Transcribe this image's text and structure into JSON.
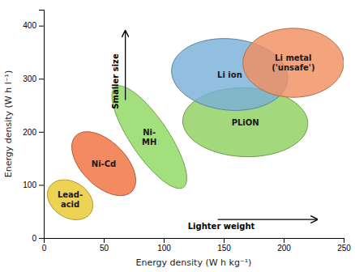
{
  "chart_data": {
    "type": "ellipse",
    "xlabel": "Energy density (W h kg⁻¹)",
    "ylabel": "Energy density (W h l⁻¹)",
    "xlim": [
      0,
      250
    ],
    "ylim": [
      0,
      430
    ],
    "xticks": [
      0,
      50,
      100,
      150,
      200,
      250
    ],
    "yticks": [
      0,
      100,
      200,
      300,
      400
    ],
    "grid": false,
    "series": [
      {
        "name": "Lead-\nacid",
        "color": "#e8c830",
        "cx": 22,
        "cy": 72,
        "rx": 18,
        "ry": 38,
        "angle": 10
      },
      {
        "name": "Ni-Cd",
        "color": "#f07040",
        "cx": 50,
        "cy": 140,
        "rx": 22,
        "ry": 62,
        "angle": 15
      },
      {
        "name": "Ni-\nMH",
        "color": "#90d860",
        "cx": 88,
        "cy": 190,
        "rx": 18,
        "ry": 100,
        "angle": 15
      },
      {
        "name": "PLiON",
        "color": "#90d060",
        "cx": 168,
        "cy": 218,
        "rx": 52,
        "ry": 65,
        "angle": 5
      },
      {
        "name": "Li ion",
        "color": "#7ab0d8",
        "cx": 155,
        "cy": 308,
        "rx": 48,
        "ry": 68,
        "angle": 8
      },
      {
        "name": "Li metal\n('unsafe')",
        "color": "#f09060",
        "cx": 208,
        "cy": 330,
        "rx": 42,
        "ry": 65,
        "angle": 0
      }
    ],
    "annotations": [
      {
        "text": "Lighter weight",
        "x": 148,
        "y": 28,
        "arrow_from": [
          145,
          35
        ],
        "arrow_to": [
          228,
          35
        ]
      },
      {
        "text": "Smaller size",
        "x": 62,
        "y": 295,
        "arrow_from": [
          68,
          260
        ],
        "arrow_to": [
          68,
          390
        ]
      }
    ]
  }
}
